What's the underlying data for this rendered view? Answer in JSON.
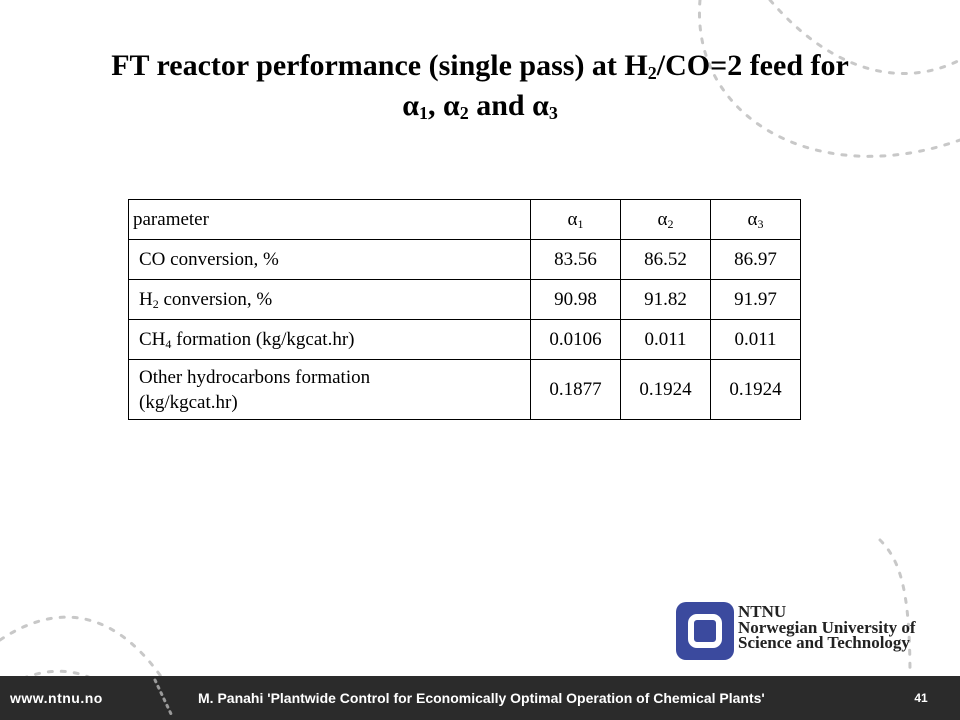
{
  "slide": {
    "title_line1_pre": "FT reactor performance (single pass) at H",
    "title_sub2": "2",
    "title_line1_post": "/CO=2 feed for",
    "alpha": "α",
    "alpha_sub1": "1",
    "sep_comma": ",",
    "alpha_sub2": "2",
    "and_word": "and",
    "alpha_sub3": "3"
  },
  "table": {
    "header": {
      "param": "parameter",
      "a1_sym": "α",
      "a1_sub": "1",
      "a2_sym": "α",
      "a2_sub": "2",
      "a3_sym": "α",
      "a3_sub": "3"
    },
    "rows": [
      {
        "label": "CO conversion, %",
        "v1": "83.56",
        "v2": "86.52",
        "v3": "86.97"
      },
      {
        "label_pre": "H",
        "label_sub": "2",
        "label_post": " conversion, %",
        "v1": "90.98",
        "v2": "91.82",
        "v3": "91.97"
      },
      {
        "label_pre": "CH",
        "label_sub": "4",
        "label_post": " formation (kg/kgcat.hr)",
        "v1": "0.0106",
        "v2": "0.011",
        "v3": "0.011"
      },
      {
        "label_line1": "Other hydrocarbons formation",
        "label_line2": "(kg/kgcat.hr)",
        "v1": "0.1877",
        "v2": "0.1924",
        "v3": "0.1924"
      }
    ]
  },
  "logo": {
    "line1": "NTNU",
    "line2": "Norwegian University of",
    "line3": "Science and Technology",
    "color": "#3b4a9e"
  },
  "footer": {
    "url": "www.ntnu.no",
    "citation": "M. Panahi 'Plantwide Control for Economically Optimal Operation of Chemical Plants'",
    "page": "41"
  }
}
